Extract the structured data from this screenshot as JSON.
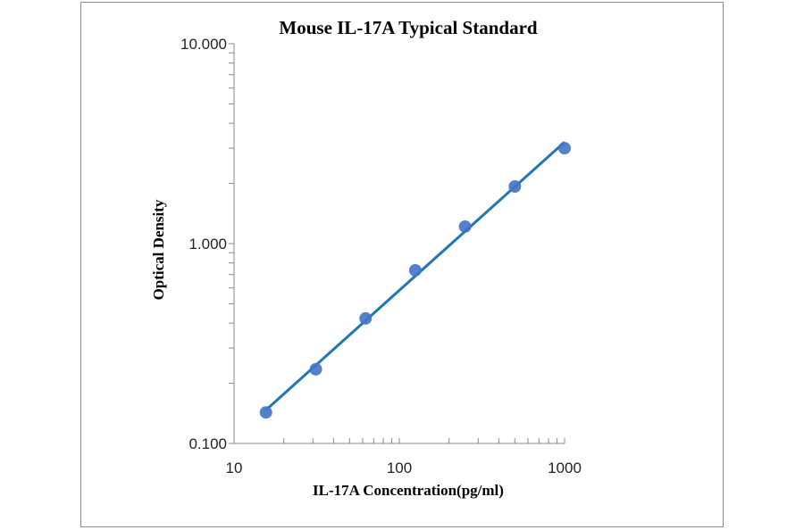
{
  "chart_data": {
    "type": "scatter",
    "title": "Mouse IL-17A Typical Standard",
    "xlabel": "IL-17A Concentration(pg/ml)",
    "ylabel": "Optical Density",
    "x_scale": "log",
    "y_scale": "log",
    "xlim": [
      10,
      1000
    ],
    "ylim": [
      0.1,
      10
    ],
    "x_ticks": [
      "10",
      "100",
      "1000"
    ],
    "y_ticks": [
      "0.100",
      "1.000",
      "10.000"
    ],
    "grid": false,
    "legend": "none",
    "marker_color": "#4472c4",
    "line_color": "#1f77b4",
    "trendline": true,
    "series": [
      {
        "x": [
          15.6,
          31.25,
          62.5,
          125,
          250,
          500,
          1000
        ],
        "y": [
          0.143,
          0.235,
          0.422,
          0.735,
          1.216,
          1.93,
          3.0
        ]
      }
    ]
  }
}
